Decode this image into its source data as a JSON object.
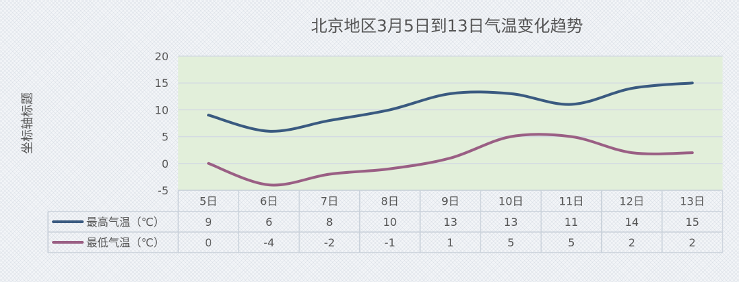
{
  "chart_data": {
    "type": "line",
    "title": "北京地区3月5日到13日气温变化趋势",
    "ylabel": "坐标轴标题",
    "xlabel": "",
    "ylim": [
      -5,
      20
    ],
    "yticks": [
      -5,
      0,
      5,
      10,
      15,
      20
    ],
    "categories": [
      "5日",
      "6日",
      "7日",
      "8日",
      "9日",
      "10日",
      "11日",
      "12日",
      "13日"
    ],
    "series": [
      {
        "name": "最高气温（℃）",
        "color": "#3a5a80",
        "values": [
          9,
          6,
          8,
          10,
          13,
          13,
          11,
          14,
          15
        ]
      },
      {
        "name": "最低气温（℃）",
        "color": "#9a5f84",
        "values": [
          0,
          -4,
          -2,
          -1,
          1,
          5,
          5,
          2,
          2
        ]
      }
    ],
    "grid": true,
    "plot_background": "#e2efda",
    "data_table": true,
    "legend": "in-data-table"
  }
}
